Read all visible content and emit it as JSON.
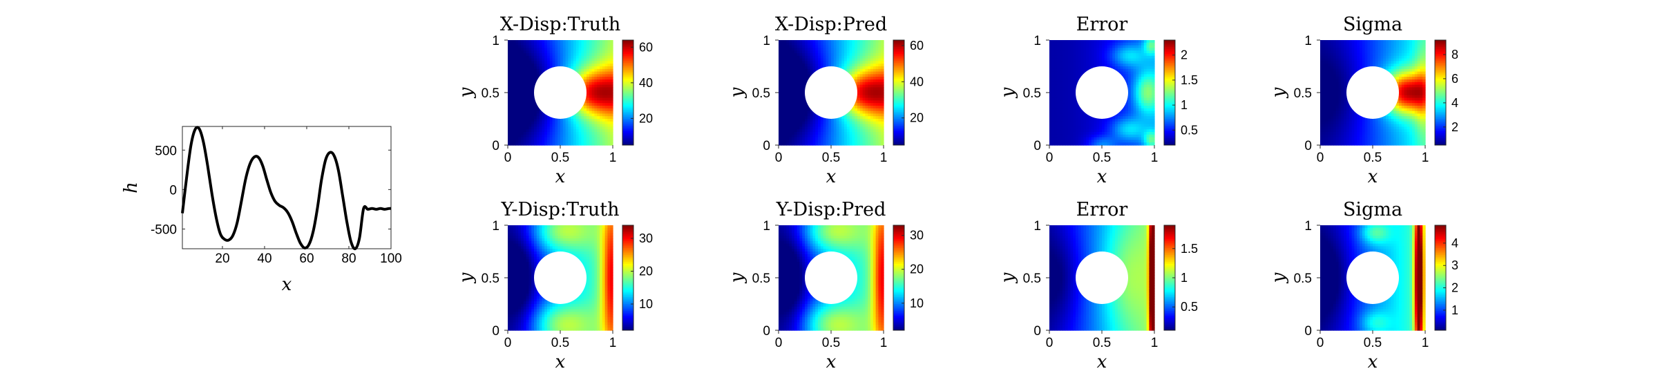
{
  "figure": {
    "line_panel": {
      "type": "line",
      "xlabel": "x",
      "ylabel": "h",
      "xlim": [
        1,
        100
      ],
      "ylim": [
        -750,
        800
      ],
      "xticks": [
        20,
        40,
        60,
        80,
        100
      ],
      "yticks": [
        500,
        0,
        -500
      ],
      "series": [
        {
          "x": [
            1,
            3,
            5,
            7,
            9,
            11,
            13,
            15,
            17,
            19,
            21,
            23,
            25,
            27,
            29,
            31,
            33,
            35,
            37,
            39,
            41,
            43,
            45,
            47,
            49,
            51,
            53,
            55,
            57,
            59,
            61,
            63,
            65,
            67,
            69,
            71,
            73,
            75,
            77,
            79,
            81,
            83,
            85,
            87,
            89,
            91,
            93,
            95,
            97,
            99,
            100
          ],
          "y": [
            -300,
            150,
            550,
            760,
            770,
            600,
            300,
            -50,
            -350,
            -560,
            -630,
            -640,
            -580,
            -420,
            -150,
            130,
            320,
            410,
            410,
            310,
            130,
            -40,
            -150,
            -200,
            -230,
            -290,
            -400,
            -550,
            -680,
            -740,
            -700,
            -540,
            -250,
            120,
            380,
            470,
            430,
            250,
            -70,
            -400,
            -660,
            -750,
            -620,
            -240,
            -250,
            -240,
            -250,
            -240,
            -250,
            -240,
            -240
          ]
        }
      ]
    },
    "panels": [
      {
        "title": "X-Disp:Truth",
        "xlabel": "x",
        "ylabel": "y",
        "field": "xdisp",
        "vmin": 5,
        "vmax": 64,
        "cbar_ticks": [
          20,
          40,
          60
        ]
      },
      {
        "title": "X-Disp:Pred",
        "xlabel": "x",
        "ylabel": "y",
        "field": "xdisp",
        "vmin": 5,
        "vmax": 63,
        "cbar_ticks": [
          20,
          40,
          60
        ]
      },
      {
        "title": "Error",
        "xlabel": "x",
        "ylabel": "y",
        "field": "xerr",
        "vmin": 0.2,
        "vmax": 2.3,
        "cbar_ticks": [
          0.5,
          1,
          1.5,
          2
        ]
      },
      {
        "title": "Sigma",
        "xlabel": "x",
        "ylabel": "y",
        "field": "xsig",
        "vmin": 0.5,
        "vmax": 9.2,
        "cbar_ticks": [
          2,
          4,
          6,
          8
        ]
      },
      {
        "title": "Y-Disp:Truth",
        "xlabel": "x",
        "ylabel": "y",
        "field": "ydisp",
        "vmin": 2,
        "vmax": 34,
        "cbar_ticks": [
          10,
          20,
          30
        ]
      },
      {
        "title": "Y-Disp:Pred",
        "xlabel": "x",
        "ylabel": "y",
        "field": "ydisp",
        "vmin": 2,
        "vmax": 33,
        "cbar_ticks": [
          10,
          20,
          30
        ]
      },
      {
        "title": "Error",
        "xlabel": "x",
        "ylabel": "y",
        "field": "yerr",
        "vmin": 0.1,
        "vmax": 1.9,
        "cbar_ticks": [
          0.5,
          1,
          1.5
        ]
      },
      {
        "title": "Sigma",
        "xlabel": "x",
        "ylabel": "y",
        "field": "ysig",
        "vmin": 0.1,
        "vmax": 4.8,
        "cbar_ticks": [
          1,
          2,
          3,
          4
        ]
      }
    ],
    "square_axes": {
      "xlim": [
        0,
        1
      ],
      "ylim": [
        0,
        1
      ],
      "xtick_labels": [
        "0",
        "0.5",
        "1"
      ],
      "ytick_labels": [
        "0",
        "0.5",
        "1"
      ],
      "hole": {
        "cx": 0.5,
        "cy": 0.5,
        "r": 0.25
      }
    }
  },
  "chart_data": [
    {
      "type": "line",
      "title": "",
      "xlabel": "x",
      "ylabel": "h",
      "xlim": [
        1,
        100
      ],
      "ylim": [
        -750,
        800
      ],
      "x": [
        1,
        3,
        5,
        7,
        9,
        11,
        13,
        15,
        17,
        19,
        21,
        23,
        25,
        27,
        29,
        31,
        33,
        35,
        37,
        39,
        41,
        43,
        45,
        47,
        49,
        51,
        53,
        55,
        57,
        59,
        61,
        63,
        65,
        67,
        69,
        71,
        73,
        75,
        77,
        79,
        81,
        83,
        85,
        87,
        89,
        91,
        93,
        95,
        97,
        99,
        100
      ],
      "series": [
        {
          "values": [
            -300,
            150,
            550,
            760,
            770,
            600,
            300,
            -50,
            -350,
            -560,
            -630,
            -640,
            -580,
            -420,
            -150,
            130,
            320,
            410,
            410,
            310,
            130,
            -40,
            -150,
            -200,
            -230,
            -290,
            -400,
            -550,
            -680,
            -740,
            -700,
            -540,
            -250,
            120,
            380,
            470,
            430,
            250,
            -70,
            -400,
            -660,
            -750,
            -620,
            -240,
            -250,
            -240,
            -250,
            -240,
            -250,
            -240,
            -240
          ]
        }
      ]
    },
    {
      "type": "heatmap",
      "title": "X-Disp:Truth",
      "xlabel": "x",
      "ylabel": "y",
      "xlim": [
        0,
        1
      ],
      "ylim": [
        0,
        1
      ],
      "colorbar_range": [
        5,
        64
      ],
      "colorbar_ticks": [
        20,
        40,
        60
      ]
    },
    {
      "type": "heatmap",
      "title": "X-Disp:Pred",
      "xlabel": "x",
      "ylabel": "y",
      "xlim": [
        0,
        1
      ],
      "ylim": [
        0,
        1
      ],
      "colorbar_range": [
        5,
        63
      ],
      "colorbar_ticks": [
        20,
        40,
        60
      ]
    },
    {
      "type": "heatmap",
      "title": "Error",
      "xlabel": "x",
      "ylabel": "y",
      "xlim": [
        0,
        1
      ],
      "ylim": [
        0,
        1
      ],
      "colorbar_range": [
        0.2,
        2.3
      ],
      "colorbar_ticks": [
        0.5,
        1,
        1.5,
        2
      ]
    },
    {
      "type": "heatmap",
      "title": "Sigma",
      "xlabel": "x",
      "ylabel": "y",
      "xlim": [
        0,
        1
      ],
      "ylim": [
        0,
        1
      ],
      "colorbar_range": [
        0.5,
        9.2
      ],
      "colorbar_ticks": [
        2,
        4,
        6,
        8
      ]
    },
    {
      "type": "heatmap",
      "title": "Y-Disp:Truth",
      "xlabel": "x",
      "ylabel": "y",
      "xlim": [
        0,
        1
      ],
      "ylim": [
        0,
        1
      ],
      "colorbar_range": [
        2,
        34
      ],
      "colorbar_ticks": [
        10,
        20,
        30
      ]
    },
    {
      "type": "heatmap",
      "title": "Y-Disp:Pred",
      "xlabel": "x",
      "ylabel": "y",
      "xlim": [
        0,
        1
      ],
      "ylim": [
        0,
        1
      ],
      "colorbar_range": [
        2,
        33
      ],
      "colorbar_ticks": [
        10,
        20,
        30
      ]
    },
    {
      "type": "heatmap",
      "title": "Error",
      "xlabel": "x",
      "ylabel": "y",
      "xlim": [
        0,
        1
      ],
      "ylim": [
        0,
        1
      ],
      "colorbar_range": [
        0.1,
        1.9
      ],
      "colorbar_ticks": [
        0.5,
        1,
        1.5
      ]
    },
    {
      "type": "heatmap",
      "title": "Sigma",
      "xlabel": "x",
      "ylabel": "y",
      "xlim": [
        0,
        1
      ],
      "ylim": [
        0,
        1
      ],
      "colorbar_range": [
        0.1,
        4.8
      ],
      "colorbar_ticks": [
        1,
        2,
        3,
        4
      ]
    }
  ]
}
